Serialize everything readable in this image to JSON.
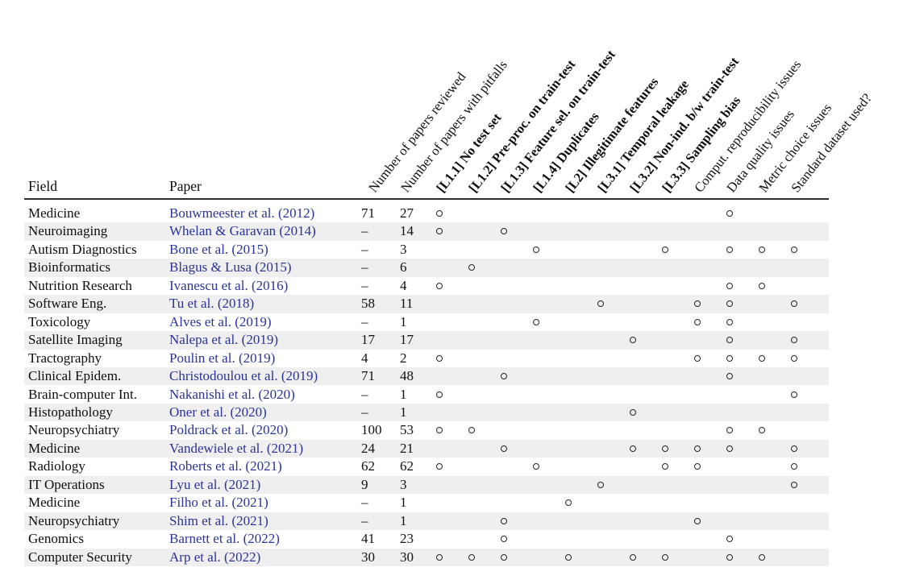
{
  "table": {
    "field_header": "Field",
    "paper_header": "Paper",
    "marker_glyph": "open-circle",
    "columns": [
      {
        "key": "num-papers-reviewed",
        "label": "Number of papers reviewed",
        "bold": false
      },
      {
        "key": "num-papers-with-pitfalls",
        "label": "Number of papers with pitfalls",
        "bold": false
      },
      {
        "key": "l1-1-no-test-set",
        "label": "[L1.1] No test set",
        "bold": true
      },
      {
        "key": "l1-2-preproc-on-train-test",
        "label": "[L1.2] Pre-proc. on train-test",
        "bold": true
      },
      {
        "key": "l1-3-feature-sel-on-train-test",
        "label": "[L1.3] Feature sel. on train-test",
        "bold": true
      },
      {
        "key": "l1-4-duplicates",
        "label": "[L1.4] Duplicates",
        "bold": true
      },
      {
        "key": "l2-illegitimate-features",
        "label": "[L2] Illegitimate features",
        "bold": true
      },
      {
        "key": "l3-1-temporal-leakage",
        "label": "[L3.1] Temporal leakage",
        "bold": true
      },
      {
        "key": "l3-2-non-ind-bw-train-test",
        "label": "[L3.2] Non-ind. b/w train-test",
        "bold": true
      },
      {
        "key": "l3-3-sampling-bias",
        "label": "[L3.3] Sampling bias",
        "bold": true
      },
      {
        "key": "comput-reproducibility-issues",
        "label": "Comput. reproducibility issues",
        "bold": false
      },
      {
        "key": "data-quality-issues",
        "label": "Data quality issues",
        "bold": false
      },
      {
        "key": "metric-choice-issues",
        "label": "Metric choice issues",
        "bold": false
      },
      {
        "key": "standard-dataset-used",
        "label": "Standard dataset used?",
        "bold": false
      }
    ],
    "rows": [
      {
        "field": "Medicine",
        "paper": "Bouwmeester et al. (2012)",
        "reviewed": "71",
        "pitfalls": "27",
        "marks": [
          1,
          0,
          0,
          0,
          0,
          0,
          0,
          0,
          0,
          1,
          0,
          0
        ]
      },
      {
        "field": "Neuroimaging",
        "paper": "Whelan & Garavan (2014)",
        "reviewed": "–",
        "pitfalls": "14",
        "marks": [
          1,
          0,
          1,
          0,
          0,
          0,
          0,
          0,
          0,
          0,
          0,
          0
        ]
      },
      {
        "field": "Autism Diagnostics",
        "paper": "Bone et al. (2015)",
        "reviewed": "–",
        "pitfalls": "3",
        "marks": [
          0,
          0,
          0,
          1,
          0,
          0,
          0,
          1,
          0,
          1,
          1,
          1
        ]
      },
      {
        "field": "Bioinformatics",
        "paper": "Blagus & Lusa (2015)",
        "reviewed": "–",
        "pitfalls": "6",
        "marks": [
          0,
          1,
          0,
          0,
          0,
          0,
          0,
          0,
          0,
          0,
          0,
          0
        ]
      },
      {
        "field": "Nutrition Research",
        "paper": "Ivanescu et al. (2016)",
        "reviewed": "–",
        "pitfalls": "4",
        "marks": [
          1,
          0,
          0,
          0,
          0,
          0,
          0,
          0,
          0,
          1,
          1,
          0
        ]
      },
      {
        "field": "Software Eng.",
        "paper": "Tu et al. (2018)",
        "reviewed": "58",
        "pitfalls": "11",
        "marks": [
          0,
          0,
          0,
          0,
          0,
          1,
          0,
          0,
          1,
          1,
          0,
          1
        ]
      },
      {
        "field": "Toxicology",
        "paper": "Alves et al. (2019)",
        "reviewed": "–",
        "pitfalls": "1",
        "marks": [
          0,
          0,
          0,
          1,
          0,
          0,
          0,
          0,
          1,
          1,
          0,
          0
        ]
      },
      {
        "field": "Satellite Imaging",
        "paper": "Nalepa et al. (2019)",
        "reviewed": "17",
        "pitfalls": "17",
        "marks": [
          0,
          0,
          0,
          0,
          0,
          0,
          1,
          0,
          0,
          1,
          0,
          1
        ]
      },
      {
        "field": "Tractography",
        "paper": "Poulin et al. (2019)",
        "reviewed": "4",
        "pitfalls": "2",
        "marks": [
          1,
          0,
          0,
          0,
          0,
          0,
          0,
          0,
          1,
          1,
          1,
          1
        ]
      },
      {
        "field": "Clinical Epidem.",
        "paper": "Christodoulou et al. (2019)",
        "reviewed": "71",
        "pitfalls": "48",
        "marks": [
          0,
          0,
          1,
          0,
          0,
          0,
          0,
          0,
          0,
          1,
          0,
          0
        ]
      },
      {
        "field": "Brain-computer Int.",
        "paper": "Nakanishi et al. (2020)",
        "reviewed": "–",
        "pitfalls": "1",
        "marks": [
          1,
          0,
          0,
          0,
          0,
          0,
          0,
          0,
          0,
          0,
          0,
          1
        ]
      },
      {
        "field": "Histopathology",
        "paper": "Oner et al. (2020)",
        "reviewed": "–",
        "pitfalls": "1",
        "marks": [
          0,
          0,
          0,
          0,
          0,
          0,
          1,
          0,
          0,
          0,
          0,
          0
        ]
      },
      {
        "field": "Neuropsychiatry",
        "paper": "Poldrack et al. (2020)",
        "reviewed": "100",
        "pitfalls": "53",
        "marks": [
          1,
          1,
          0,
          0,
          0,
          0,
          0,
          0,
          0,
          1,
          1,
          0
        ]
      },
      {
        "field": "Medicine",
        "paper": "Vandewiele et al. (2021)",
        "reviewed": "24",
        "pitfalls": "21",
        "marks": [
          0,
          0,
          1,
          0,
          0,
          0,
          1,
          1,
          1,
          1,
          0,
          1
        ]
      },
      {
        "field": "Radiology",
        "paper": "Roberts et al. (2021)",
        "reviewed": "62",
        "pitfalls": "62",
        "marks": [
          1,
          0,
          0,
          1,
          0,
          0,
          0,
          1,
          1,
          0,
          0,
          1
        ]
      },
      {
        "field": "IT Operations",
        "paper": "Lyu et al. (2021)",
        "reviewed": "9",
        "pitfalls": "3",
        "marks": [
          0,
          0,
          0,
          0,
          0,
          1,
          0,
          0,
          0,
          0,
          0,
          1
        ]
      },
      {
        "field": "Medicine",
        "paper": "Filho et al. (2021)",
        "reviewed": "–",
        "pitfalls": "1",
        "marks": [
          0,
          0,
          0,
          0,
          1,
          0,
          0,
          0,
          0,
          0,
          0,
          0
        ]
      },
      {
        "field": "Neuropsychiatry",
        "paper": "Shim et al. (2021)",
        "reviewed": "–",
        "pitfalls": "1",
        "marks": [
          0,
          0,
          1,
          0,
          0,
          0,
          0,
          0,
          1,
          0,
          0,
          0
        ]
      },
      {
        "field": "Genomics",
        "paper": "Barnett et al. (2022)",
        "reviewed": "41",
        "pitfalls": "23",
        "marks": [
          0,
          0,
          1,
          0,
          0,
          0,
          0,
          0,
          0,
          1,
          0,
          0
        ]
      },
      {
        "field": "Computer Security",
        "paper": "Arp et al. (2022)",
        "reviewed": "30",
        "pitfalls": "30",
        "marks": [
          1,
          1,
          1,
          0,
          1,
          0,
          1,
          1,
          0,
          1,
          1,
          0
        ]
      }
    ]
  },
  "colors": {
    "citation_blue": "#2a3496",
    "row_stripe": "#efefef",
    "rule": "#2b2b2b",
    "marker_outline": "#222222",
    "text": "#0d0d0d",
    "background": "#ffffff"
  }
}
